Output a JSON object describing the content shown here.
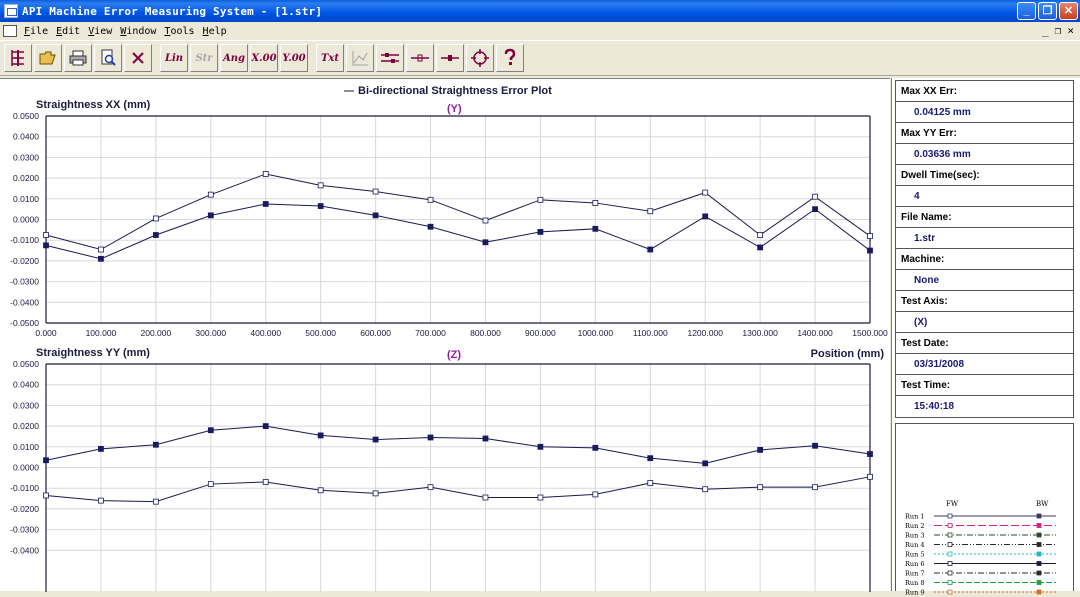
{
  "window": {
    "title": "API Machine Error Measuring System - [1.str]",
    "buttons": {
      "minimize": "_",
      "maximize": "❐",
      "close": "✕"
    }
  },
  "menu": {
    "items": [
      {
        "label": "File",
        "u": "F",
        "rest": "ile"
      },
      {
        "label": "Edit",
        "u": "E",
        "rest": "dit"
      },
      {
        "label": "View",
        "u": "V",
        "rest": "iew"
      },
      {
        "label": "Window",
        "u": "W",
        "rest": "indow"
      },
      {
        "label": "Tools",
        "u": "T",
        "rest": "ools"
      },
      {
        "label": "Help",
        "u": "H",
        "rest": "elp"
      }
    ],
    "mdi_buttons": [
      "_",
      "❐",
      "×"
    ]
  },
  "toolbar": {
    "lin": "Lin",
    "str": "Str",
    "ang": "Ang",
    "x00": "X.00",
    "y00": "Y.00",
    "txt": "Txt"
  },
  "chart": {
    "main_title": "Bi-directional Straightness Error Plot",
    "top_axis_tag": "(Y)",
    "bottom_axis_tag": "(Z)",
    "top_ylabel": "Straightness XX (mm)",
    "bottom_ylabel": "Straightness YY (mm)",
    "xlabel": "Position (mm)"
  },
  "chart_data": [
    {
      "type": "line",
      "ylabel": "Straightness XX (mm)",
      "xlabel": "Position (mm)",
      "x": [
        0,
        100,
        200,
        300,
        400,
        500,
        600,
        700,
        800,
        900,
        1000,
        1100,
        1200,
        1300,
        1400,
        1500
      ],
      "x_ticks": [
        "0.000",
        "100.000",
        "200.000",
        "300.000",
        "400.000",
        "500.000",
        "600.000",
        "700.000",
        "800.000",
        "900.000",
        "1000.000",
        "1100.000",
        "1200.000",
        "1300.000",
        "1400.000",
        "1500.000"
      ],
      "y_ticks": [
        "0.0500",
        "0.0400",
        "0.0300",
        "0.0200",
        "0.0100",
        "0.0000",
        "-0.0100",
        "-0.0200",
        "-0.0300",
        "-0.0400",
        "-0.0500"
      ],
      "ylim": [
        -0.05,
        0.05
      ],
      "xlim": [
        0,
        1500
      ],
      "grid": true,
      "series": [
        {
          "name": "FW",
          "marker": "open-square",
          "values": [
            -0.0075,
            -0.0145,
            0.0005,
            0.012,
            0.022,
            0.0165,
            0.0135,
            0.0095,
            -0.0005,
            0.0095,
            0.008,
            0.004,
            0.013,
            -0.0075,
            0.011,
            -0.008
          ]
        },
        {
          "name": "BW",
          "marker": "filled-square",
          "values": [
            -0.0125,
            -0.019,
            -0.0075,
            0.002,
            0.0075,
            0.0065,
            0.002,
            -0.0035,
            -0.011,
            -0.006,
            -0.0045,
            -0.0145,
            0.0015,
            -0.0135,
            0.005,
            -0.015
          ]
        }
      ]
    },
    {
      "type": "line",
      "ylabel": "Straightness YY (mm)",
      "x": [
        0,
        100,
        200,
        300,
        400,
        500,
        600,
        700,
        800,
        900,
        1000,
        1100,
        1200,
        1300,
        1400,
        1500
      ],
      "y_ticks": [
        "0.0500",
        "0.0400",
        "0.0300",
        "0.0200",
        "0.0100",
        "0.0000",
        "-0.0100",
        "-0.0200",
        "-0.0300",
        "-0.0400"
      ],
      "ylim": [
        -0.05,
        0.05
      ],
      "xlim": [
        0,
        1500
      ],
      "grid": true,
      "series": [
        {
          "name": "BW",
          "marker": "filled-square",
          "values": [
            0.0035,
            0.009,
            0.011,
            0.018,
            0.02,
            0.0155,
            0.0135,
            0.0145,
            0.014,
            0.01,
            0.0095,
            0.0045,
            0.002,
            0.0085,
            0.0105,
            0.0065
          ]
        },
        {
          "name": "FW",
          "marker": "open-square",
          "values": [
            -0.0135,
            -0.016,
            -0.0165,
            -0.008,
            -0.007,
            -0.011,
            -0.0125,
            -0.0095,
            -0.0145,
            -0.0145,
            -0.013,
            -0.0075,
            -0.0105,
            -0.0095,
            -0.0095,
            -0.0045
          ]
        }
      ]
    }
  ],
  "info": {
    "rows": [
      {
        "label": "Max XX Err:",
        "value": "0.04125 mm"
      },
      {
        "label": "Max YY Err:",
        "value": "0.03636 mm"
      },
      {
        "label": "Dwell Time(sec):",
        "value": "4"
      },
      {
        "label": "File Name:",
        "value": "1.str"
      },
      {
        "label": "Machine:",
        "value": "None"
      },
      {
        "label": "Test Axis:",
        "value": "(X)"
      },
      {
        "label": "Test Date:",
        "value": "03/31/2008"
      },
      {
        "label": "Test Time:",
        "value": "15:40:18"
      }
    ]
  },
  "legend": {
    "fw_label": "FW",
    "bw_label": "BW",
    "runs": [
      {
        "name": "Run 1",
        "color": "#3a3a6a",
        "dash": ""
      },
      {
        "name": "Run 2",
        "color": "#d0208a",
        "dash": "8,3"
      },
      {
        "name": "Run 3",
        "color": "#2a4a2a",
        "dash": "6,2,1,2"
      },
      {
        "name": "Run 4",
        "color": "#2a2a2a",
        "dash": "6,2,1,2,1,2"
      },
      {
        "name": "Run 5",
        "color": "#20b8c8",
        "dash": "2,2"
      },
      {
        "name": "Run 6",
        "color": "#1a1a40",
        "dash": ""
      },
      {
        "name": "Run 7",
        "color": "#2a2a2a",
        "dash": "6,2,1,2"
      },
      {
        "name": "Run 8",
        "color": "#20a040",
        "dash": "6,2"
      },
      {
        "name": "Run 9",
        "color": "#d07020",
        "dash": "2,2"
      }
    ]
  }
}
